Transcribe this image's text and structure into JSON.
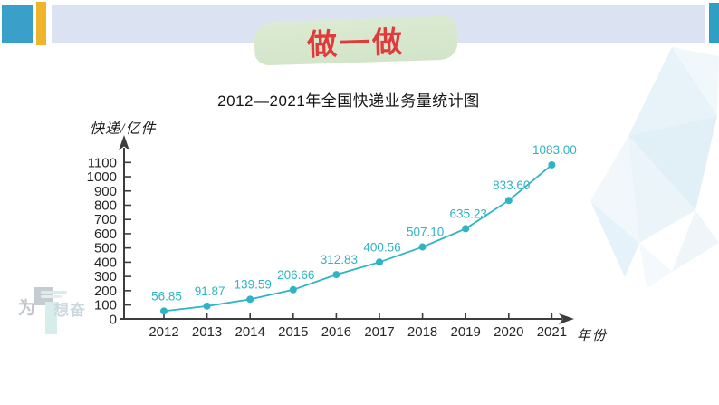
{
  "header": {
    "banner_label": "做一做",
    "colors": {
      "left_square": "#3ba0c9",
      "yellow_bar": "#f0b42a",
      "top_bar": "#dbe2f1",
      "right_square": "#2f9fc5",
      "banner_bg": "#d6e7cd",
      "banner_text": "#e23a3a"
    }
  },
  "chart_data": {
    "type": "line",
    "title": "2012—2021年全国快递业务量统计图",
    "ylabel": "快递/亿件",
    "xlabel": "年份",
    "categories": [
      "2012",
      "2013",
      "2014",
      "2015",
      "2016",
      "2017",
      "2018",
      "2019",
      "2020",
      "2021"
    ],
    "values": [
      56.85,
      91.87,
      139.59,
      206.66,
      312.83,
      400.56,
      507.1,
      635.23,
      833.6,
      1083.0
    ],
    "value_labels": [
      "56.85",
      "91.87",
      "139.59",
      "206.66",
      "312.83",
      "400.56",
      "507.10",
      "635.23",
      "833.60",
      "1083.00"
    ],
    "ylim": [
      0,
      1100
    ],
    "ytick_step": 100,
    "grid": false,
    "legend": "none",
    "line_color": "#2eb4c4",
    "axis_color": "#3d3d3d"
  },
  "watermark": {
    "char_first": "为",
    "chars_rest": "想奋"
  }
}
